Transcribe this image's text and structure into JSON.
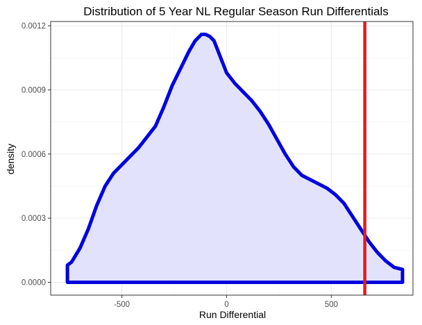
{
  "chart_data": {
    "type": "area",
    "title": "Distribution of 5 Year NL Regular Season Run Differentials",
    "xlabel": "Run Differential",
    "ylabel": "density",
    "xlim": [
      -840,
      890
    ],
    "ylim": [
      -6e-05,
      0.00122
    ],
    "x_ticks": [
      -500,
      0,
      500
    ],
    "x_tick_labels": [
      "-500",
      "0",
      "500"
    ],
    "y_ticks": [
      0,
      0.0003,
      0.0006,
      0.0009,
      0.0012
    ],
    "y_tick_labels": [
      "0.0000",
      "0.0003",
      "0.0006",
      "0.0009",
      "0.0012"
    ],
    "grid": true,
    "legend": "none",
    "series": [
      {
        "x": [
          -760,
          -740,
          -700,
          -660,
          -620,
          -580,
          -540,
          -500,
          -460,
          -420,
          -380,
          -340,
          -300,
          -260,
          -220,
          -180,
          -150,
          -120,
          -100,
          -80,
          -60,
          -40,
          -20,
          0,
          40,
          80,
          120,
          160,
          200,
          240,
          280,
          320,
          360,
          400,
          440,
          480,
          520,
          560,
          600,
          640,
          680,
          720,
          760,
          800,
          840
        ],
        "y": [
          8e-05,
          9.5e-05,
          0.00016,
          0.00025,
          0.00036,
          0.00045,
          0.00051,
          0.00055,
          0.00059,
          0.00063,
          0.00068,
          0.00073,
          0.00082,
          0.00092,
          0.001,
          0.00108,
          0.00113,
          0.00116,
          0.00116,
          0.00115,
          0.00113,
          0.00108,
          0.00103,
          0.00098,
          0.00093,
          0.00089,
          0.00085,
          0.0008,
          0.00074,
          0.00067,
          0.0006,
          0.00054,
          0.0005,
          0.00048,
          0.00046,
          0.00044,
          0.00041,
          0.00037,
          0.00031,
          0.00025,
          0.00019,
          0.00014,
          0.0001,
          7e-05,
          6e-05
        ]
      }
    ],
    "reference_line": {
      "x": 660,
      "color": "#e41a1c"
    },
    "colors": {
      "fill": "#e2e2fc",
      "stroke": "#0000dd",
      "grid": "#ebebeb",
      "axis_border": "#333333"
    }
  }
}
